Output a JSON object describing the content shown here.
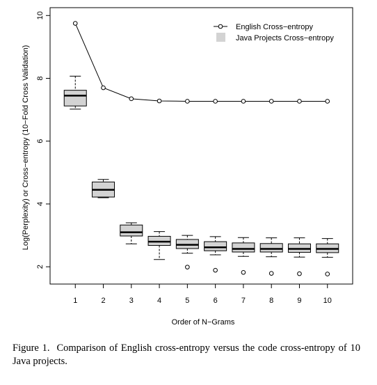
{
  "chart_data": {
    "type": "box+line",
    "xlabel": "Order of N−Grams",
    "ylabel": "Log(Perplexity) or Cross−entropy (10−Fold Cross Validation)",
    "categories": [
      "1",
      "2",
      "3",
      "4",
      "5",
      "6",
      "7",
      "8",
      "9",
      "10"
    ],
    "xlim": [
      0.1,
      10.9
    ],
    "ylim": [
      1.45,
      10.25
    ],
    "yticks": [
      2,
      4,
      6,
      8,
      10
    ],
    "grid": false,
    "legend_position": "top-right",
    "legend": [
      "English Cross−entropy",
      "Java Projects Cross−entropy"
    ],
    "line_series": {
      "name": "English Cross−entropy",
      "x": [
        1,
        2,
        3,
        4,
        5,
        6,
        7,
        8,
        9,
        10
      ],
      "y": [
        9.75,
        7.7,
        7.35,
        7.28,
        7.27,
        7.27,
        7.27,
        7.27,
        7.27,
        7.27
      ]
    },
    "box_series": {
      "name": "Java Projects Cross−entropy",
      "boxes": [
        {
          "x": 1,
          "min": 7.02,
          "q1": 7.12,
          "median": 7.45,
          "q3": 7.62,
          "max": 8.07,
          "outliers": []
        },
        {
          "x": 2,
          "min": 4.2,
          "q1": 4.22,
          "median": 4.45,
          "q3": 4.7,
          "max": 4.78,
          "outliers": []
        },
        {
          "x": 3,
          "min": 2.73,
          "q1": 2.98,
          "median": 3.1,
          "q3": 3.33,
          "max": 3.4,
          "outliers": []
        },
        {
          "x": 4,
          "min": 2.23,
          "q1": 2.68,
          "median": 2.8,
          "q3": 2.97,
          "max": 3.12,
          "outliers": []
        },
        {
          "x": 5,
          "min": 2.43,
          "q1": 2.58,
          "median": 2.7,
          "q3": 2.87,
          "max": 3.0,
          "outliers": [
            1.99
          ]
        },
        {
          "x": 6,
          "min": 2.38,
          "q1": 2.51,
          "median": 2.62,
          "q3": 2.8,
          "max": 2.96,
          "outliers": [
            1.89
          ]
        },
        {
          "x": 7,
          "min": 2.33,
          "q1": 2.47,
          "median": 2.57,
          "q3": 2.76,
          "max": 2.93,
          "outliers": [
            1.82
          ]
        },
        {
          "x": 8,
          "min": 2.32,
          "q1": 2.47,
          "median": 2.57,
          "q3": 2.74,
          "max": 2.92,
          "outliers": [
            1.79
          ]
        },
        {
          "x": 9,
          "min": 2.31,
          "q1": 2.46,
          "median": 2.57,
          "q3": 2.73,
          "max": 2.92,
          "outliers": [
            1.78
          ]
        },
        {
          "x": 10,
          "min": 2.3,
          "q1": 2.45,
          "median": 2.57,
          "q3": 2.73,
          "max": 2.9,
          "outliers": [
            1.77
          ]
        }
      ]
    },
    "colors": {
      "box_fill": "#d3d3d3",
      "line": "#000000"
    }
  },
  "caption": {
    "label": "Figure 1.",
    "text": "Comparison of English cross-entropy versus the code cross-entropy of 10 Java projects."
  }
}
